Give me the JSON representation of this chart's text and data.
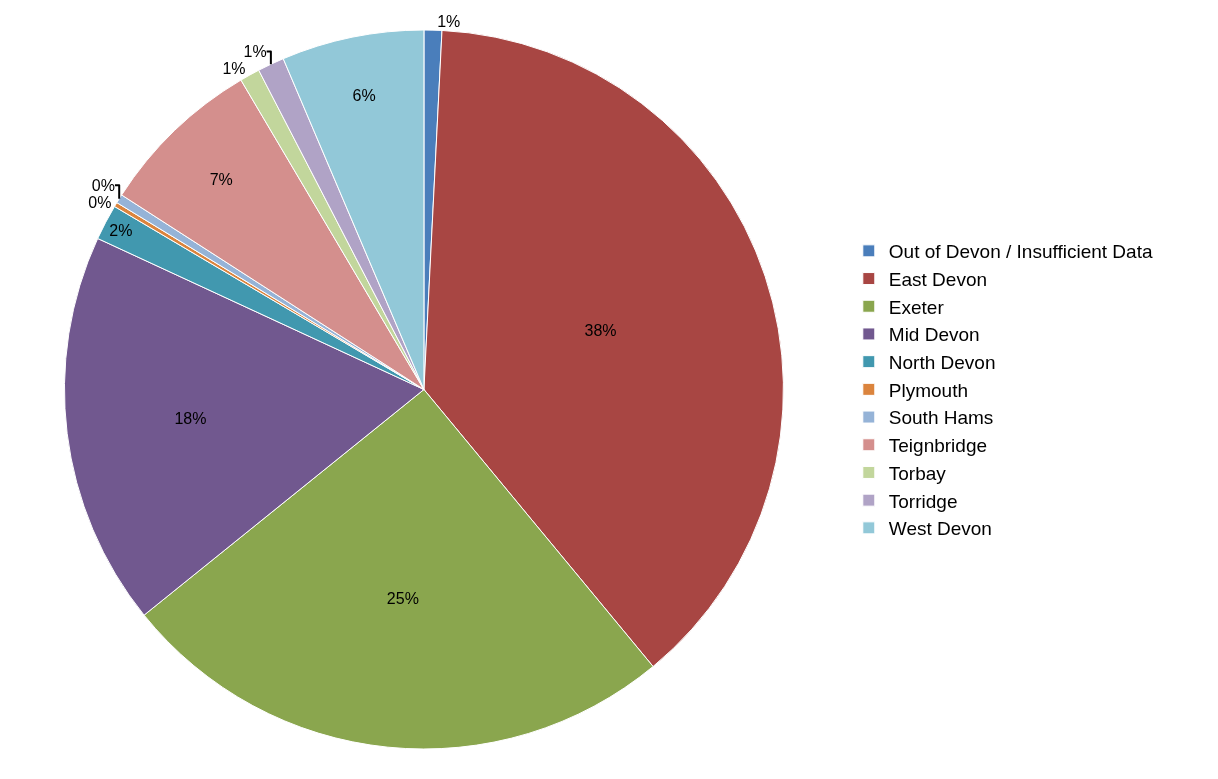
{
  "chart_data": {
    "type": "pie",
    "categories": [
      "Out of Devon / Insufficient Data",
      "East Devon",
      "Exeter",
      "Mid Devon",
      "North Devon",
      "Plymouth",
      "South Hams",
      "Teignbridge",
      "Torbay",
      "Torridge",
      "West Devon"
    ],
    "values": [
      0.8,
      38.2,
      25.2,
      17.7,
      1.6,
      0.2,
      0.4,
      7.4,
      0.9,
      1.2,
      6.4
    ],
    "value_labels": [
      "1%",
      "38%",
      "25%",
      "18%",
      "2%",
      "0%",
      "0%",
      "7%",
      "1%",
      "1%",
      "6%"
    ],
    "colors": [
      "#4a7ebb",
      "#a84643",
      "#8aa64e",
      "#71588f",
      "#4198af",
      "#db843d",
      "#95b3d7",
      "#d48f8d",
      "#c2d69c",
      "#b0a3c6",
      "#92c8d8"
    ],
    "legend": "right"
  }
}
